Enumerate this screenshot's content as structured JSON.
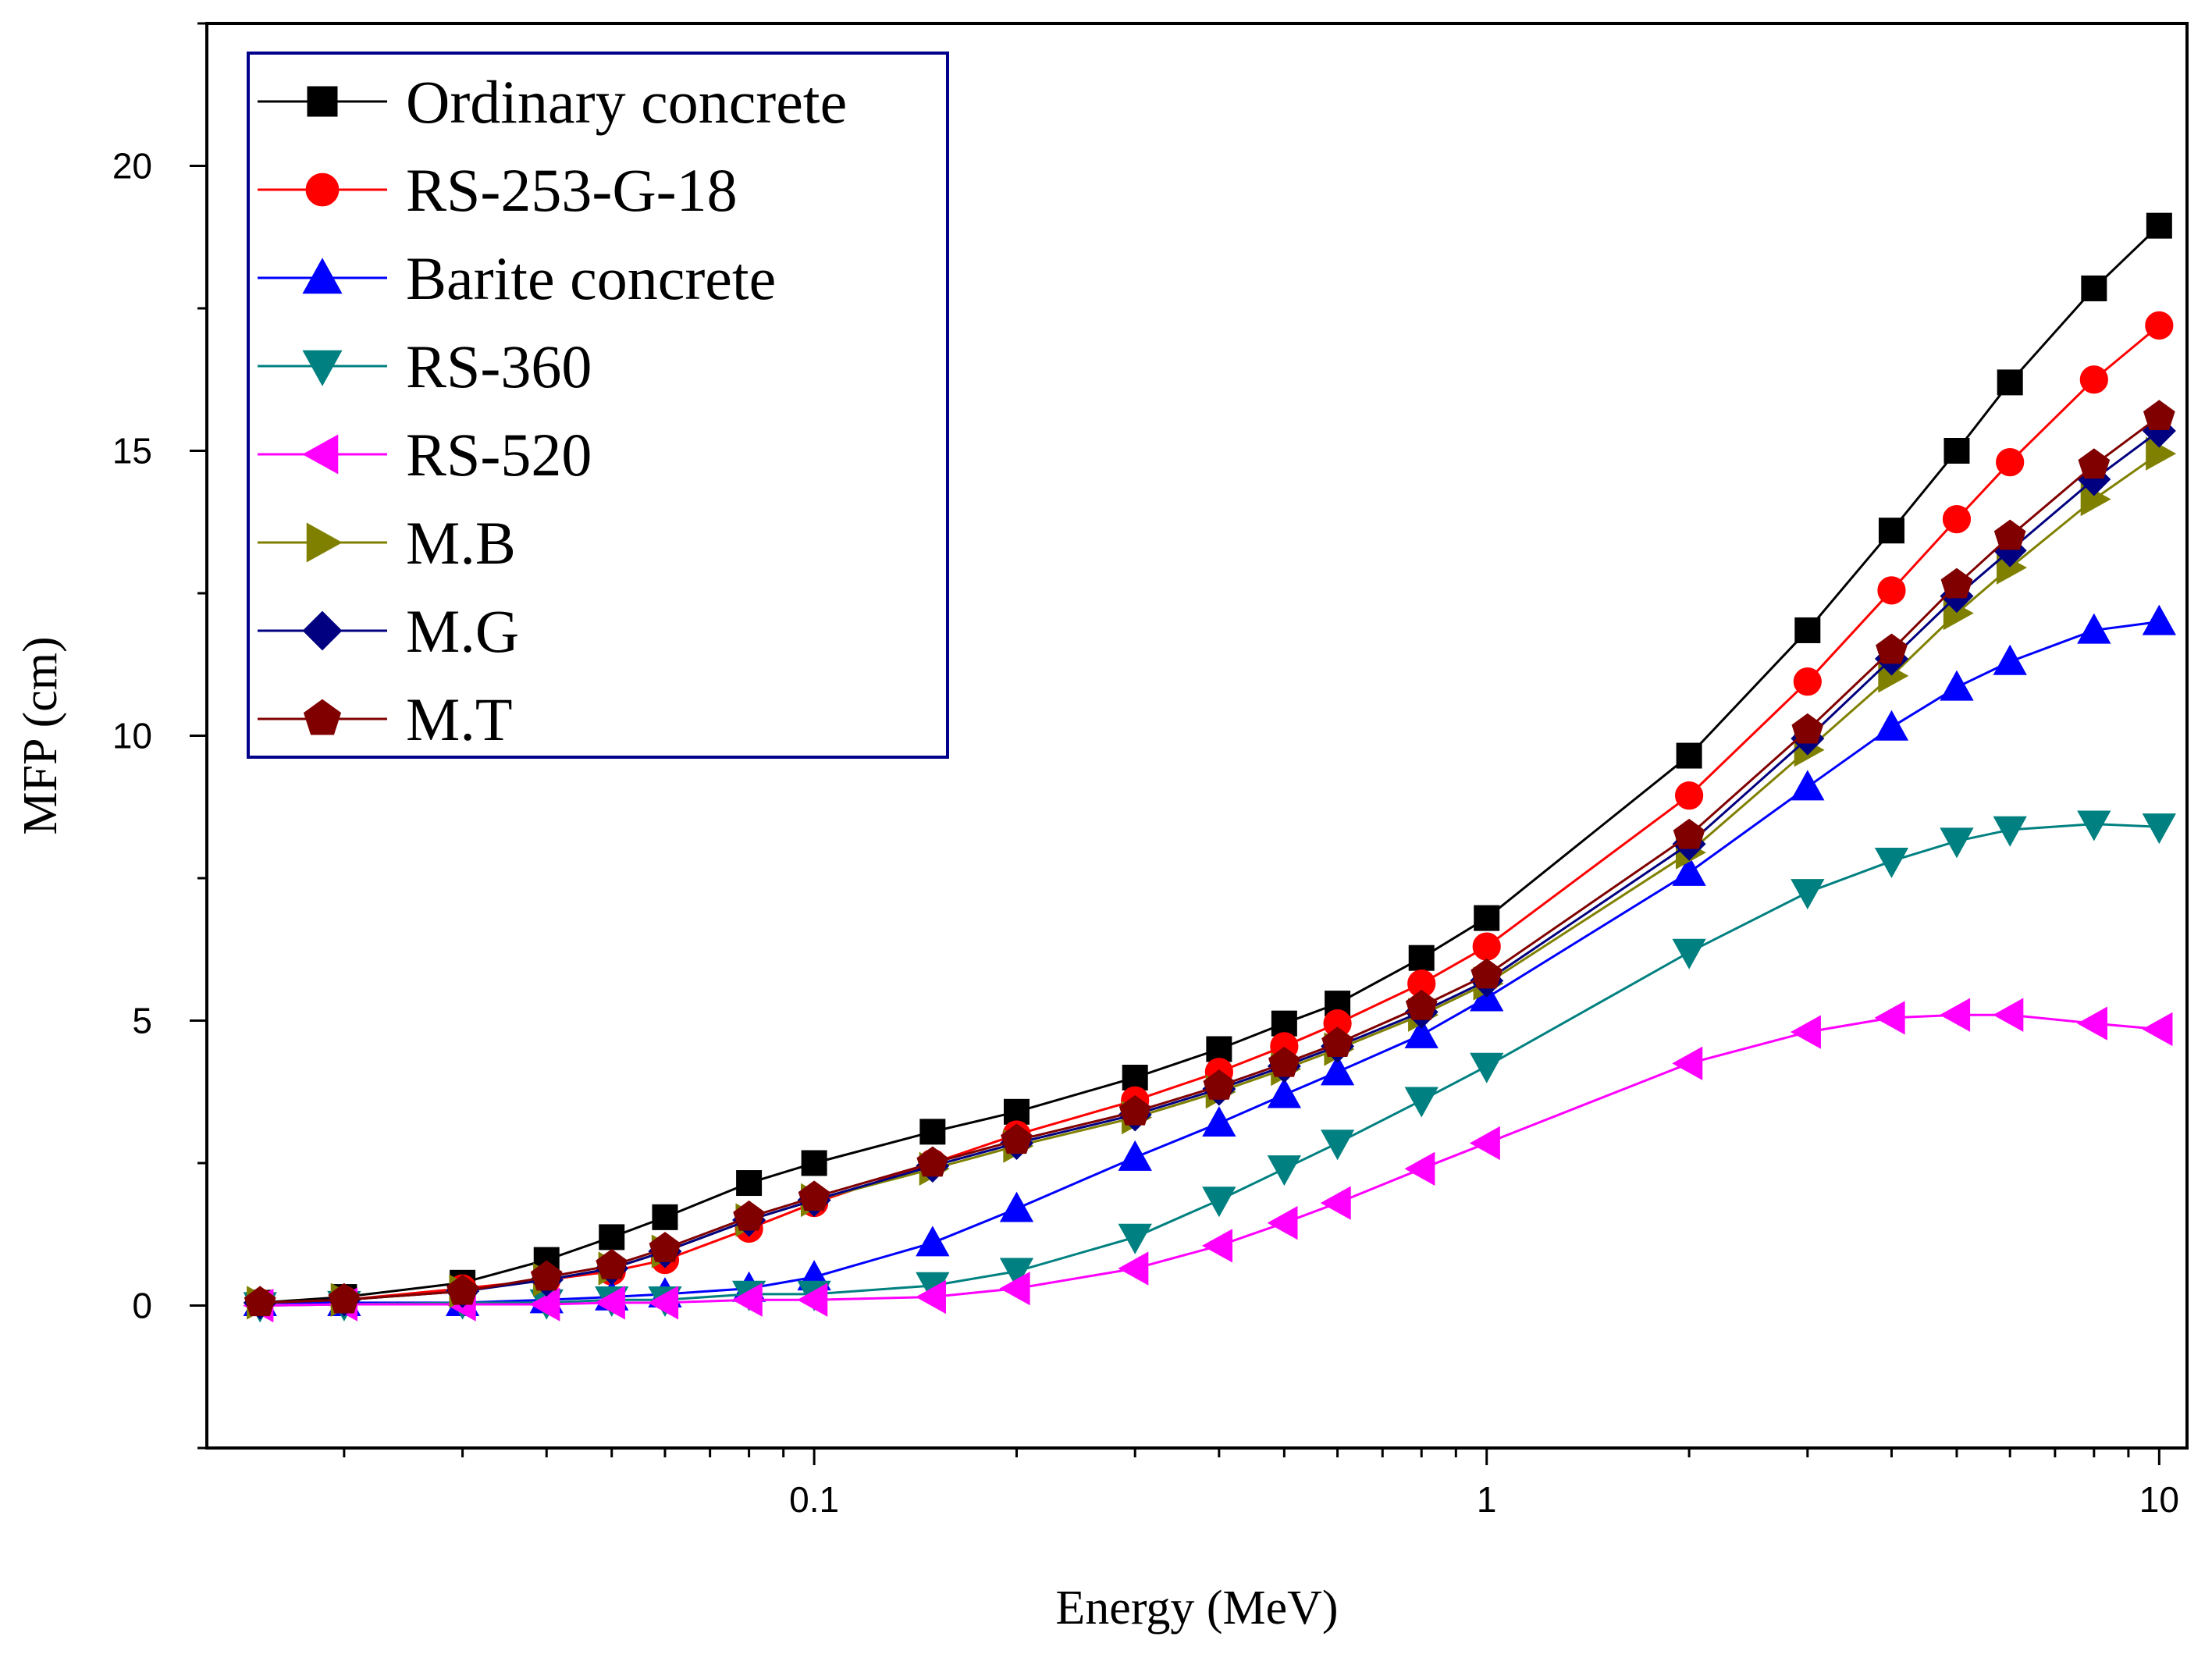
{
  "chart_data": {
    "type": "line",
    "title": "",
    "xlabel": "Energy (MeV)",
    "ylabel": "MFP (cm)",
    "xscale": "log",
    "xlim": [
      0.0125,
      11
    ],
    "ylim": [
      -2.5,
      22.5
    ],
    "grid": false,
    "legend_position": "top-left",
    "x_ticks": [
      {
        "value": 0.1,
        "label": "0.1"
      },
      {
        "value": 1,
        "label": "1"
      },
      {
        "value": 10,
        "label": "10"
      }
    ],
    "y_ticks": [
      {
        "value": 0,
        "label": "0"
      },
      {
        "value": 5,
        "label": "5"
      },
      {
        "value": 10,
        "label": "10"
      },
      {
        "value": 15,
        "label": "15"
      },
      {
        "value": 20,
        "label": "20"
      }
    ],
    "x": [
      0.015,
      0.02,
      0.03,
      0.04,
      0.05,
      0.06,
      0.08,
      0.1,
      0.15,
      0.2,
      0.3,
      0.4,
      0.5,
      0.6,
      0.8,
      1,
      2,
      3,
      4,
      5,
      6,
      8,
      10
    ],
    "series": [
      {
        "name": "Ordinary concrete",
        "color": "#000000",
        "marker": "square",
        "values": [
          0.05,
          0.15,
          0.4,
          0.8,
          1.2,
          1.55,
          2.15,
          2.5,
          3.05,
          3.4,
          4.0,
          4.5,
          4.95,
          5.3,
          6.1,
          6.8,
          9.65,
          11.85,
          13.6,
          15.0,
          16.2,
          17.85,
          18.95
        ]
      },
      {
        "name": "RS-253-G-18",
        "color": "#ff0000",
        "marker": "circle",
        "values": [
          0.05,
          0.1,
          0.3,
          0.45,
          0.6,
          0.8,
          1.35,
          1.8,
          2.5,
          3.0,
          3.6,
          4.1,
          4.55,
          4.95,
          5.65,
          6.3,
          8.95,
          10.95,
          12.55,
          13.8,
          14.8,
          16.25,
          17.2
        ]
      },
      {
        "name": "Barite concrete",
        "color": "#0000ff",
        "marker": "triangle-up",
        "values": [
          0.05,
          0.05,
          0.05,
          0.1,
          0.15,
          0.2,
          0.3,
          0.5,
          1.1,
          1.7,
          2.6,
          3.2,
          3.7,
          4.1,
          4.75,
          5.4,
          7.6,
          9.1,
          10.15,
          10.85,
          11.3,
          11.85,
          12.0
        ]
      },
      {
        "name": "RS-360",
        "color": "#008080",
        "marker": "triangle-down",
        "values": [
          0.0,
          0.02,
          0.05,
          0.05,
          0.1,
          0.1,
          0.2,
          0.2,
          0.35,
          0.6,
          1.2,
          1.85,
          2.4,
          2.85,
          3.6,
          4.2,
          6.2,
          7.25,
          7.8,
          8.15,
          8.35,
          8.45,
          8.4
        ]
      },
      {
        "name": "RS-520",
        "color": "#ff00ff",
        "marker": "triangle-left",
        "values": [
          0.0,
          0.02,
          0.02,
          0.02,
          0.05,
          0.05,
          0.1,
          0.1,
          0.15,
          0.3,
          0.65,
          1.05,
          1.45,
          1.8,
          2.4,
          2.85,
          4.25,
          4.8,
          5.05,
          5.1,
          5.1,
          4.95,
          4.85
        ]
      },
      {
        "name": "M.B",
        "color": "#808000",
        "marker": "triangle-right",
        "values": [
          0.05,
          0.1,
          0.25,
          0.45,
          0.65,
          0.95,
          1.5,
          1.85,
          2.4,
          2.8,
          3.3,
          3.75,
          4.15,
          4.5,
          5.1,
          5.65,
          7.95,
          9.75,
          11.05,
          12.15,
          12.95,
          14.15,
          14.95
        ]
      },
      {
        "name": "M.G",
        "color": "#000080",
        "marker": "diamond",
        "values": [
          0.05,
          0.1,
          0.25,
          0.45,
          0.65,
          0.95,
          1.5,
          1.85,
          2.45,
          2.85,
          3.35,
          3.8,
          4.2,
          4.55,
          5.15,
          5.7,
          8.1,
          9.95,
          11.35,
          12.45,
          13.25,
          14.5,
          15.35
        ]
      },
      {
        "name": "M.T",
        "color": "#800000",
        "marker": "pentagon",
        "values": [
          0.05,
          0.1,
          0.25,
          0.5,
          0.7,
          1.0,
          1.55,
          1.9,
          2.5,
          2.9,
          3.4,
          3.85,
          4.25,
          4.6,
          5.25,
          5.8,
          8.25,
          10.1,
          11.5,
          12.65,
          13.5,
          14.75,
          15.6
        ]
      }
    ]
  }
}
